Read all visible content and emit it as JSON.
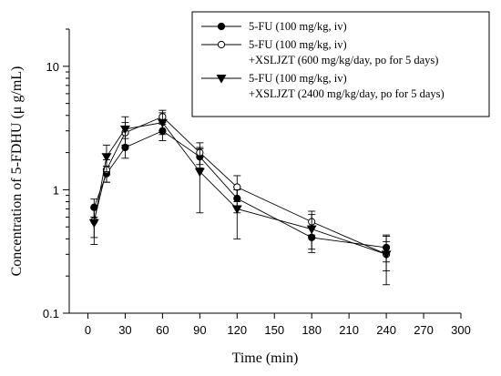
{
  "chart_data": {
    "type": "line",
    "xlabel": "Time (min)",
    "ylabel": "Concentration of 5-FDHU (μ g/mL)",
    "x_ticks": [
      0,
      30,
      60,
      90,
      120,
      150,
      180,
      210,
      240,
      270,
      300
    ],
    "y_ticks": [
      0.1,
      1,
      10
    ],
    "y_tick_labels": [
      "0.1",
      "1",
      "10"
    ],
    "xlim": [
      -15,
      300
    ],
    "ylim": [
      0.1,
      20
    ],
    "y_scale": "log",
    "legend_position": "top-right",
    "series": [
      {
        "name": "5-FU (100 mg/kg, iv)",
        "legend_lines": [
          "5-FU (100 mg/kg, iv)"
        ],
        "marker": "filled-circle",
        "x": [
          5,
          15,
          30,
          60,
          90,
          120,
          180,
          240
        ],
        "y": [
          0.72,
          1.35,
          2.2,
          3.0,
          1.85,
          0.85,
          0.41,
          0.34
        ],
        "err": [
          0.12,
          0.2,
          0.4,
          0.5,
          0.35,
          0.2,
          0.1,
          0.08
        ]
      },
      {
        "name": "5-FU (100 mg/kg, iv) +XSLJZT (600 mg/kg/day, po for 5 days)",
        "legend_lines": [
          "5-FU (100 mg/kg, iv)",
          "+XSLJZT (600 mg/kg/day, po for 5 days)"
        ],
        "marker": "open-circle",
        "x": [
          5,
          15,
          30,
          60,
          90,
          120,
          180,
          240
        ],
        "y": [
          0.56,
          1.45,
          2.9,
          3.9,
          2.0,
          1.05,
          0.55,
          0.3
        ],
        "err": [
          0.15,
          0.3,
          0.6,
          0.5,
          0.4,
          0.25,
          0.12,
          0.08
        ]
      },
      {
        "name": "5-FU (100 mg/kg, iv) +XSLJZT (2400 mg/kg/day, po for 5 days)",
        "legend_lines": [
          "5-FU (100 mg/kg, iv)",
          "+XSLJZT (2400 mg/kg/day, po for 5 days)"
        ],
        "marker": "filled-triangle-down",
        "x": [
          5,
          15,
          30,
          60,
          90,
          120,
          180,
          240
        ],
        "y": [
          0.54,
          1.85,
          3.1,
          3.5,
          1.4,
          0.7,
          0.48,
          0.3
        ],
        "err": [
          0.18,
          0.45,
          0.8,
          0.7,
          0.75,
          0.3,
          0.15,
          0.13
        ]
      }
    ]
  }
}
